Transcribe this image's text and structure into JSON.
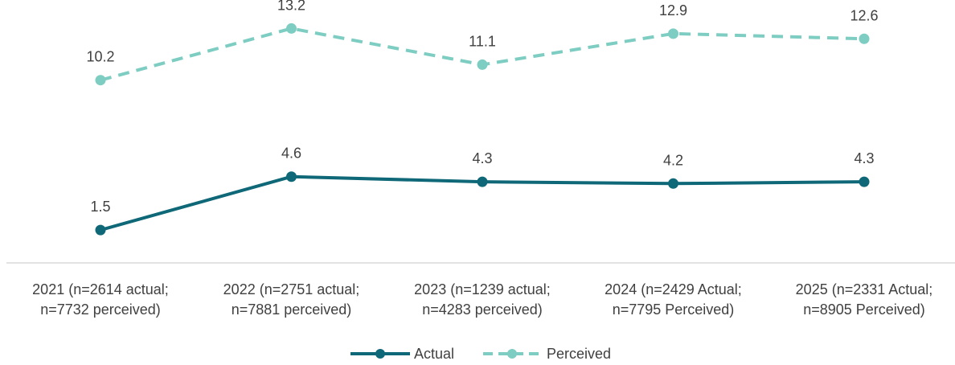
{
  "chart_data": {
    "type": "line",
    "categories": [
      [
        "2021 (n=2614 actual;",
        "n=7732 perceived)"
      ],
      [
        "2022 (n=2751 actual;",
        "n=7881 perceived)"
      ],
      [
        "2023 (n=1239 actual;",
        "n=4283 perceived)"
      ],
      [
        "2024 (n=2429 Actual;",
        "n=7795 Perceived)"
      ],
      [
        "2025 (n=2331 Actual;",
        "n=8905 Perceived)"
      ]
    ],
    "series": [
      {
        "name": "Actual",
        "values": [
          1.5,
          4.6,
          4.3,
          4.2,
          4.3
        ],
        "color": "#0E6877",
        "style": "solid"
      },
      {
        "name": "Perceived",
        "values": [
          10.2,
          13.2,
          11.1,
          12.9,
          12.6
        ],
        "color": "#7ECDC2",
        "style": "dashed"
      }
    ],
    "data_labels": true,
    "grid": false,
    "legend_position": "bottom",
    "title": "",
    "xlabel": "",
    "ylabel": ""
  }
}
